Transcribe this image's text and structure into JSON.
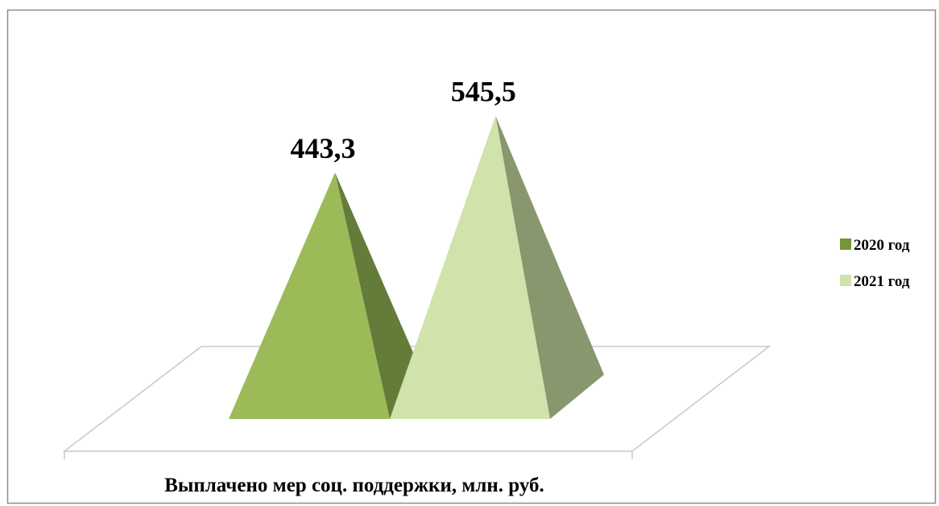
{
  "chart_data": {
    "type": "bar",
    "subtype": "3d-pyramid",
    "categories": [
      "Выплачено мер соц. поддержки, млн. руб."
    ],
    "series": [
      {
        "name": "2020 год",
        "values": [
          443.3
        ],
        "value_label": "443,3",
        "color": "#9bbb59",
        "shade_color": "#647c3a"
      },
      {
        "name": "2021 год",
        "values": [
          545.5
        ],
        "value_label": "545,5",
        "color": "#d0e3ab",
        "shade_color": "#88976e"
      }
    ],
    "title": "",
    "xlabel": "",
    "ylabel": "",
    "legend_position": "right",
    "grid": false
  }
}
